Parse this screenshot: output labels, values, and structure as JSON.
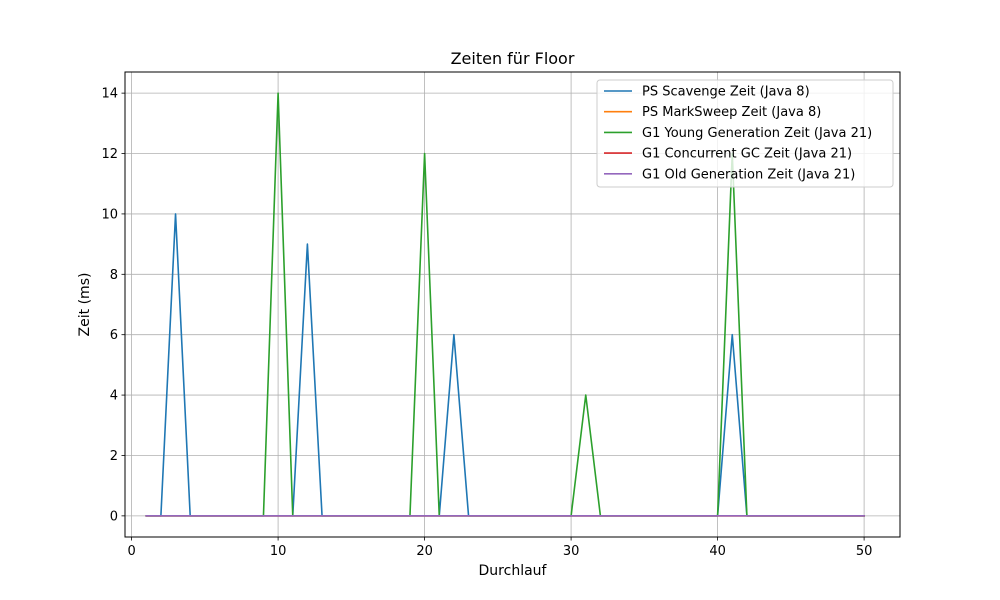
{
  "chart_data": {
    "type": "line",
    "title": "Zeiten für Floor",
    "xlabel": "Durchlauf",
    "ylabel": "Zeit (ms)",
    "xlim": [
      -0.45,
      52.45
    ],
    "ylim": [
      -0.7,
      14.7
    ],
    "xticks": [
      0,
      10,
      20,
      30,
      40,
      50
    ],
    "xtick_labels": [
      "0",
      "10",
      "20",
      "30",
      "40",
      "50"
    ],
    "yticks": [
      0,
      2,
      4,
      6,
      8,
      10,
      12,
      14
    ],
    "ytick_labels": [
      "0",
      "2",
      "4",
      "6",
      "8",
      "10",
      "12",
      "14"
    ],
    "grid": true,
    "legend_position": "top-right",
    "x": [
      1,
      2,
      3,
      4,
      5,
      6,
      7,
      8,
      9,
      10,
      11,
      12,
      13,
      14,
      15,
      16,
      17,
      18,
      19,
      20,
      21,
      22,
      23,
      24,
      25,
      26,
      27,
      28,
      29,
      30,
      31,
      32,
      33,
      34,
      35,
      36,
      37,
      38,
      39,
      40,
      41,
      42,
      43,
      44,
      45,
      46,
      47,
      48,
      49,
      50
    ],
    "series": [
      {
        "name": "PS Scavenge Zeit (Java 8)",
        "color": "#1f77b4",
        "values": [
          0,
          0,
          10,
          0,
          0,
          0,
          0,
          0,
          0,
          0,
          0,
          9,
          0,
          0,
          0,
          0,
          0,
          0,
          0,
          0,
          0,
          6,
          0,
          0,
          0,
          0,
          0,
          0,
          0,
          0,
          0,
          0,
          0,
          0,
          0,
          0,
          0,
          0,
          0,
          0,
          6,
          0,
          0,
          0,
          0,
          0,
          0,
          0,
          0,
          0
        ]
      },
      {
        "name": "PS MarkSweep Zeit (Java 8)",
        "color": "#ff7f0e",
        "values": [
          0,
          0,
          0,
          0,
          0,
          0,
          0,
          0,
          0,
          0,
          0,
          0,
          0,
          0,
          0,
          0,
          0,
          0,
          0,
          0,
          0,
          0,
          0,
          0,
          0,
          0,
          0,
          0,
          0,
          0,
          0,
          0,
          0,
          0,
          0,
          0,
          0,
          0,
          0,
          0,
          0,
          0,
          0,
          0,
          0,
          0,
          0,
          0,
          0,
          0
        ]
      },
      {
        "name": "G1 Young Generation Zeit (Java 21)",
        "color": "#2ca02c",
        "values": [
          0,
          0,
          0,
          0,
          0,
          0,
          0,
          0,
          0,
          14,
          0,
          0,
          0,
          0,
          0,
          0,
          0,
          0,
          0,
          12,
          0,
          0,
          0,
          0,
          0,
          0,
          0,
          0,
          0,
          0,
          4,
          0,
          0,
          0,
          0,
          0,
          0,
          0,
          0,
          0,
          12,
          0,
          0,
          0,
          0,
          0,
          0,
          0,
          0,
          0
        ]
      },
      {
        "name": "G1 Concurrent GC Zeit (Java 21)",
        "color": "#d62728",
        "values": [
          0,
          0,
          0,
          0,
          0,
          0,
          0,
          0,
          0,
          0,
          0,
          0,
          0,
          0,
          0,
          0,
          0,
          0,
          0,
          0,
          0,
          0,
          0,
          0,
          0,
          0,
          0,
          0,
          0,
          0,
          0,
          0,
          0,
          0,
          0,
          0,
          0,
          0,
          0,
          0,
          0,
          0,
          0,
          0,
          0,
          0,
          0,
          0,
          0,
          0
        ]
      },
      {
        "name": "G1 Old Generation Zeit (Java 21)",
        "color": "#9467bd",
        "values": [
          0,
          0,
          0,
          0,
          0,
          0,
          0,
          0,
          0,
          0,
          0,
          0,
          0,
          0,
          0,
          0,
          0,
          0,
          0,
          0,
          0,
          0,
          0,
          0,
          0,
          0,
          0,
          0,
          0,
          0,
          0,
          0,
          0,
          0,
          0,
          0,
          0,
          0,
          0,
          0,
          0,
          0,
          0,
          0,
          0,
          0,
          0,
          0,
          0,
          0
        ]
      }
    ]
  }
}
